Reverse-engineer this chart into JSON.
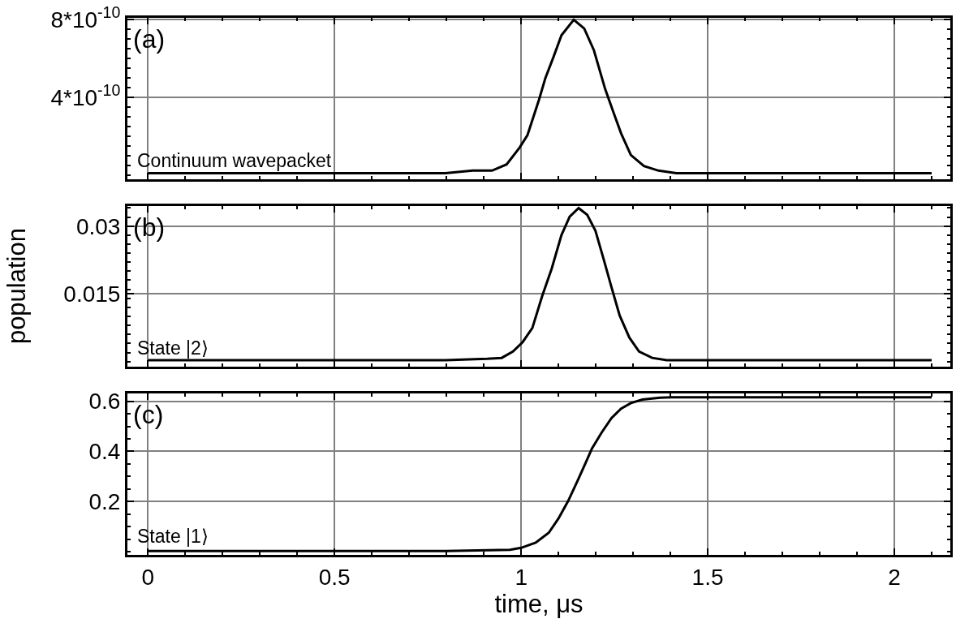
{
  "chart_data": [
    {
      "type": "line",
      "x": [
        0,
        0.797,
        0.87,
        0.922,
        0.961,
        0.996,
        1.017,
        1.048,
        1.065,
        1.087,
        1.108,
        1.141,
        1.169,
        1.195,
        1.225,
        1.247,
        1.268,
        1.294,
        1.329,
        1.368,
        1.416,
        2.1
      ],
      "series": [
        {
          "color": "#000000",
          "values": [
            1e-11,
            1e-11,
            2.3e-11,
            2.3e-11,
            5.5e-11,
            1.42e-10,
            2.06e-10,
            3.89e-10,
            5e-10,
            6.1e-10,
            7.2e-10,
            8e-10,
            7.55e-10,
            6.43e-10,
            4.44e-10,
            3.25e-10,
            2.14e-10,
            1.03e-10,
            4.7e-11,
            2.3e-11,
            1e-11,
            1e-11
          ]
        }
      ],
      "xlim": [
        -0.055,
        2.15
      ],
      "xticks": [
        0,
        0.5,
        1,
        1.5,
        2
      ],
      "ylim": [
        -2e-11,
        8.1e-10
      ],
      "yticks": [
        {
          "value": 8e-10,
          "label": "8*10$^{-10}$"
        },
        {
          "value": 4e-10,
          "label": "4*10$^{-10}$"
        }
      ],
      "grid": true,
      "tick_labels": "y",
      "line_style": "solid",
      "annotations": [
        "(a)",
        "Continuum wavepacket"
      ]
    },
    {
      "type": "line",
      "x": [
        0,
        0.797,
        0.909,
        0.948,
        0.978,
        1.004,
        1.03,
        1.056,
        1.082,
        1.108,
        1.13,
        1.154,
        1.177,
        1.199,
        1.221,
        1.242,
        1.264,
        1.29,
        1.316,
        1.351,
        1.39,
        2.1
      ],
      "series": [
        {
          "color": "#000000",
          "values": [
            0.0003,
            0.0003,
            0.0006,
            0.0008,
            0.0022,
            0.0043,
            0.0074,
            0.0144,
            0.0206,
            0.028,
            0.0321,
            0.034,
            0.0325,
            0.029,
            0.0227,
            0.0165,
            0.0102,
            0.0053,
            0.0022,
            0.0008,
            0.0003,
            0.0003
          ]
        }
      ],
      "xlim": [
        -0.055,
        2.15
      ],
      "xticks": [
        0,
        0.5,
        1,
        1.5,
        2
      ],
      "ylim": [
        -0.0012,
        0.0345
      ],
      "yticks": [
        0.03,
        0.015
      ],
      "ylabel": "population",
      "grid": true,
      "tick_labels": "y",
      "line_style": "solid",
      "annotations": [
        "(b)",
        "State |2⟩"
      ]
    },
    {
      "type": "line",
      "x": [
        0,
        0.797,
        0.97,
        1.0,
        1.039,
        1.074,
        1.1,
        1.126,
        1.152,
        1.173,
        1.19,
        1.216,
        1.242,
        1.268,
        1.294,
        1.325,
        1.372,
        1.403,
        2.1
      ],
      "series": [
        {
          "color": "#000000",
          "values": [
            0.002,
            0.002,
            0.007,
            0.015,
            0.036,
            0.075,
            0.132,
            0.202,
            0.285,
            0.355,
            0.412,
            0.476,
            0.533,
            0.571,
            0.593,
            0.607,
            0.614,
            0.616,
            0.616
          ]
        }
      ],
      "xlim": [
        -0.055,
        2.15
      ],
      "xticks": [
        0,
        0.5,
        1,
        1.5,
        2
      ],
      "ylim": [
        -0.013,
        0.63
      ],
      "yticks": [
        0.6,
        0.4,
        0.2
      ],
      "xlabel": "time, μs",
      "grid": true,
      "line_style": "solid",
      "annotations": [
        "(c)",
        "State |1⟩"
      ]
    }
  ]
}
